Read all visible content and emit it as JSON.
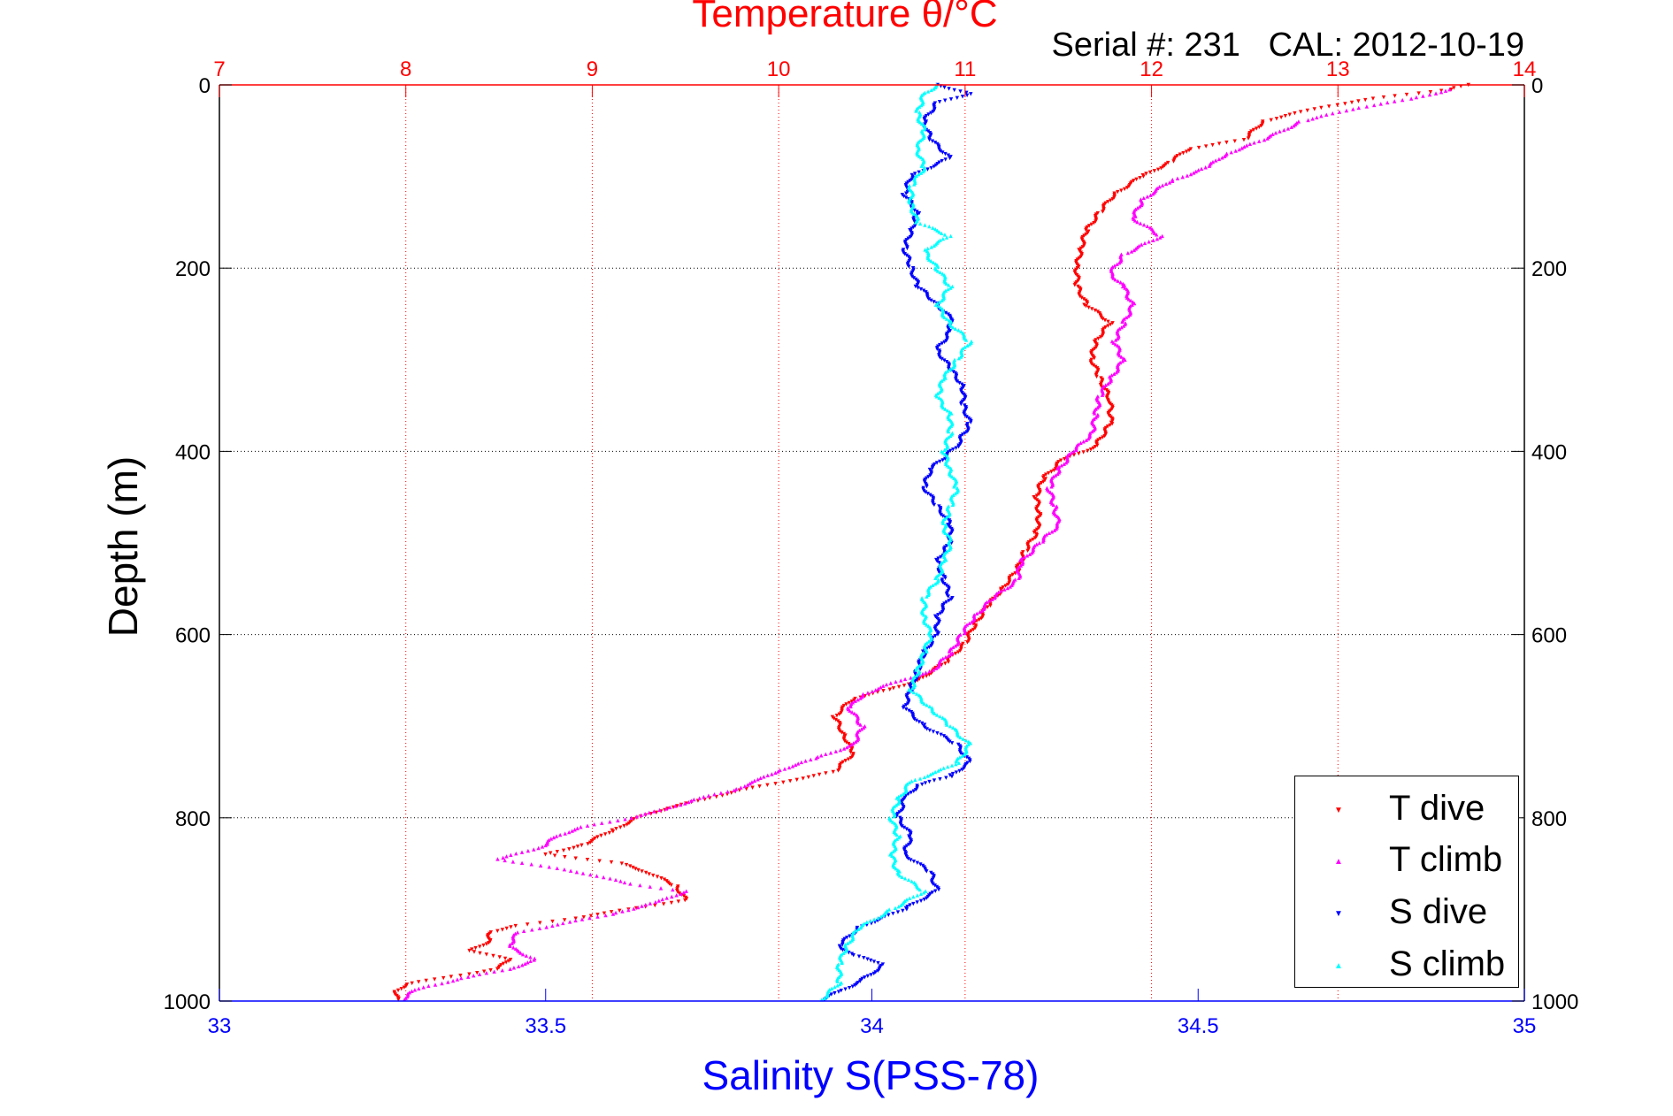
{
  "chart_data": {
    "type": "scatter",
    "title": "Temperature θ/°C",
    "subtitle": "Serial #: 231   CAL: 2012-10-19",
    "ylabel": "Depth (m)",
    "xlabel_bottom": "Salinity S(PSS-78)",
    "y_axis": {
      "ylim": [
        0,
        1000
      ],
      "reversed": true,
      "ticks": [
        "0",
        "200",
        "400",
        "600",
        "800",
        "1000"
      ]
    },
    "x_axis_top": {
      "xlim": [
        7,
        14
      ],
      "ticks": [
        "7",
        "8",
        "9",
        "10",
        "11",
        "12",
        "13",
        "14"
      ],
      "color": "#ff0000",
      "grid": true
    },
    "x_axis_bottom": {
      "xlim": [
        33,
        35
      ],
      "ticks": [
        "33",
        "33.5",
        "34",
        "34.5",
        "35"
      ],
      "color": "#0000ff"
    },
    "legend_position": "bottom-right",
    "series": [
      {
        "name": "T dive",
        "axis": "top",
        "color": "#ff0000",
        "marker": "triangle-down",
        "points": [
          [
            13.7,
            0
          ],
          [
            13.6,
            5
          ],
          [
            13.2,
            15
          ],
          [
            12.9,
            25
          ],
          [
            12.6,
            40
          ],
          [
            12.5,
            60
          ],
          [
            12.2,
            70
          ],
          [
            12.1,
            85
          ],
          [
            11.95,
            100
          ],
          [
            11.8,
            120
          ],
          [
            11.72,
            140
          ],
          [
            11.65,
            160
          ],
          [
            11.62,
            180
          ],
          [
            11.6,
            200
          ],
          [
            11.6,
            220
          ],
          [
            11.65,
            240
          ],
          [
            11.78,
            260
          ],
          [
            11.7,
            280
          ],
          [
            11.68,
            300
          ],
          [
            11.72,
            320
          ],
          [
            11.78,
            345
          ],
          [
            11.78,
            370
          ],
          [
            11.7,
            395
          ],
          [
            11.52,
            410
          ],
          [
            11.42,
            430
          ],
          [
            11.38,
            450
          ],
          [
            11.4,
            470
          ],
          [
            11.38,
            490
          ],
          [
            11.32,
            510
          ],
          [
            11.28,
            530
          ],
          [
            11.2,
            550
          ],
          [
            11.12,
            570
          ],
          [
            11.05,
            590
          ],
          [
            11.0,
            610
          ],
          [
            10.9,
            630
          ],
          [
            10.75,
            650
          ],
          [
            10.6,
            660
          ],
          [
            10.4,
            670
          ],
          [
            10.3,
            690
          ],
          [
            10.35,
            710
          ],
          [
            10.4,
            730
          ],
          [
            10.3,
            750
          ],
          [
            10.05,
            760
          ],
          [
            9.8,
            770
          ],
          [
            9.6,
            780
          ],
          [
            9.4,
            790
          ],
          [
            9.25,
            800
          ],
          [
            9.1,
            815
          ],
          [
            8.95,
            830
          ],
          [
            8.75,
            840
          ],
          [
            9.15,
            850
          ],
          [
            9.3,
            860
          ],
          [
            9.45,
            875
          ],
          [
            9.5,
            890
          ],
          [
            9.2,
            900
          ],
          [
            8.9,
            910
          ],
          [
            8.6,
            918
          ],
          [
            8.45,
            925
          ],
          [
            8.45,
            935
          ],
          [
            8.35,
            945
          ],
          [
            8.55,
            955
          ],
          [
            8.5,
            965
          ],
          [
            8.2,
            975
          ],
          [
            8.0,
            982
          ],
          [
            7.95,
            990
          ],
          [
            7.95,
            1000
          ]
        ]
      },
      {
        "name": "T climb",
        "axis": "top",
        "color": "#ff00ff",
        "marker": "triangle-up",
        "points": [
          [
            13.6,
            5
          ],
          [
            13.4,
            15
          ],
          [
            13.1,
            25
          ],
          [
            12.8,
            40
          ],
          [
            12.6,
            60
          ],
          [
            12.4,
            75
          ],
          [
            12.3,
            90
          ],
          [
            12.1,
            105
          ],
          [
            11.95,
            125
          ],
          [
            11.9,
            145
          ],
          [
            12.05,
            165
          ],
          [
            11.85,
            185
          ],
          [
            11.78,
            205
          ],
          [
            11.85,
            220
          ],
          [
            11.9,
            240
          ],
          [
            11.85,
            260
          ],
          [
            11.8,
            280
          ],
          [
            11.85,
            300
          ],
          [
            11.78,
            320
          ],
          [
            11.72,
            340
          ],
          [
            11.7,
            360
          ],
          [
            11.68,
            380
          ],
          [
            11.58,
            400
          ],
          [
            11.5,
            420
          ],
          [
            11.45,
            440
          ],
          [
            11.48,
            460
          ],
          [
            11.5,
            480
          ],
          [
            11.4,
            500
          ],
          [
            11.3,
            520
          ],
          [
            11.28,
            540
          ],
          [
            11.15,
            560
          ],
          [
            11.05,
            580
          ],
          [
            10.98,
            600
          ],
          [
            10.92,
            620
          ],
          [
            10.82,
            640
          ],
          [
            10.65,
            650
          ],
          [
            10.45,
            665
          ],
          [
            10.38,
            680
          ],
          [
            10.45,
            700
          ],
          [
            10.4,
            720
          ],
          [
            10.2,
            735
          ],
          [
            10.0,
            748
          ],
          [
            9.9,
            758
          ],
          [
            9.75,
            770
          ],
          [
            9.55,
            780
          ],
          [
            9.4,
            790
          ],
          [
            9.2,
            800
          ],
          [
            8.95,
            810
          ],
          [
            8.8,
            820
          ],
          [
            8.75,
            830
          ],
          [
            8.5,
            845
          ],
          [
            8.8,
            855
          ],
          [
            9.0,
            862
          ],
          [
            9.2,
            872
          ],
          [
            9.5,
            880
          ],
          [
            9.35,
            892
          ],
          [
            9.1,
            905
          ],
          [
            8.85,
            915
          ],
          [
            8.6,
            925
          ],
          [
            8.55,
            940
          ],
          [
            8.7,
            955
          ],
          [
            8.55,
            965
          ],
          [
            8.3,
            975
          ],
          [
            8.1,
            985
          ],
          [
            8.0,
            992
          ],
          [
            8.0,
            1000
          ]
        ]
      },
      {
        "name": "S dive",
        "axis": "bottom",
        "color": "#0000ff",
        "marker": "triangle-down",
        "points": [
          [
            34.1,
            0
          ],
          [
            34.15,
            10
          ],
          [
            34.1,
            20
          ],
          [
            34.08,
            40
          ],
          [
            34.09,
            60
          ],
          [
            34.12,
            80
          ],
          [
            34.06,
            100
          ],
          [
            34.05,
            120
          ],
          [
            34.07,
            140
          ],
          [
            34.06,
            160
          ],
          [
            34.05,
            180
          ],
          [
            34.06,
            200
          ],
          [
            34.07,
            220
          ],
          [
            34.1,
            240
          ],
          [
            34.12,
            255
          ],
          [
            34.12,
            270
          ],
          [
            34.1,
            290
          ],
          [
            34.12,
            310
          ],
          [
            34.14,
            330
          ],
          [
            34.14,
            350
          ],
          [
            34.15,
            370
          ],
          [
            34.13,
            395
          ],
          [
            34.09,
            420
          ],
          [
            34.08,
            440
          ],
          [
            34.1,
            460
          ],
          [
            34.12,
            480
          ],
          [
            34.12,
            500
          ],
          [
            34.1,
            520
          ],
          [
            34.11,
            540
          ],
          [
            34.12,
            560
          ],
          [
            34.1,
            580
          ],
          [
            34.1,
            600
          ],
          [
            34.08,
            620
          ],
          [
            34.07,
            640
          ],
          [
            34.06,
            660
          ],
          [
            34.05,
            680
          ],
          [
            34.08,
            700
          ],
          [
            34.13,
            720
          ],
          [
            34.15,
            740
          ],
          [
            34.12,
            755
          ],
          [
            34.07,
            765
          ],
          [
            34.05,
            780
          ],
          [
            34.04,
            800
          ],
          [
            34.06,
            820
          ],
          [
            34.05,
            840
          ],
          [
            34.09,
            860
          ],
          [
            34.1,
            880
          ],
          [
            34.05,
            900
          ],
          [
            33.98,
            920
          ],
          [
            33.95,
            940
          ],
          [
            33.97,
            950
          ],
          [
            34.02,
            960
          ],
          [
            34.0,
            970
          ],
          [
            33.98,
            980
          ],
          [
            33.95,
            990
          ],
          [
            33.92,
            1000
          ]
        ]
      },
      {
        "name": "S climb",
        "axis": "bottom",
        "color": "#00ffff",
        "marker": "triangle-up",
        "points": [
          [
            34.1,
            0
          ],
          [
            34.08,
            10
          ],
          [
            34.07,
            30
          ],
          [
            34.08,
            50
          ],
          [
            34.07,
            70
          ],
          [
            34.08,
            90
          ],
          [
            34.06,
            110
          ],
          [
            34.06,
            130
          ],
          [
            34.07,
            150
          ],
          [
            34.12,
            165
          ],
          [
            34.08,
            180
          ],
          [
            34.1,
            200
          ],
          [
            34.12,
            220
          ],
          [
            34.1,
            240
          ],
          [
            34.12,
            260
          ],
          [
            34.15,
            280
          ],
          [
            34.13,
            300
          ],
          [
            34.11,
            320
          ],
          [
            34.1,
            340
          ],
          [
            34.12,
            360
          ],
          [
            34.12,
            380
          ],
          [
            34.11,
            400
          ],
          [
            34.12,
            420
          ],
          [
            34.13,
            440
          ],
          [
            34.12,
            460
          ],
          [
            34.11,
            480
          ],
          [
            34.12,
            500
          ],
          [
            34.11,
            520
          ],
          [
            34.1,
            540
          ],
          [
            34.08,
            560
          ],
          [
            34.08,
            580
          ],
          [
            34.09,
            600
          ],
          [
            34.08,
            620
          ],
          [
            34.07,
            640
          ],
          [
            34.06,
            660
          ],
          [
            34.09,
            680
          ],
          [
            34.12,
            700
          ],
          [
            34.15,
            720
          ],
          [
            34.13,
            740
          ],
          [
            34.1,
            750
          ],
          [
            34.06,
            760
          ],
          [
            34.04,
            780
          ],
          [
            34.03,
            800
          ],
          [
            34.04,
            820
          ],
          [
            34.03,
            840
          ],
          [
            34.04,
            860
          ],
          [
            34.08,
            880
          ],
          [
            34.03,
            900
          ],
          [
            33.98,
            920
          ],
          [
            33.96,
            940
          ],
          [
            33.95,
            960
          ],
          [
            33.95,
            980
          ],
          [
            33.92,
            1000
          ]
        ]
      }
    ]
  }
}
